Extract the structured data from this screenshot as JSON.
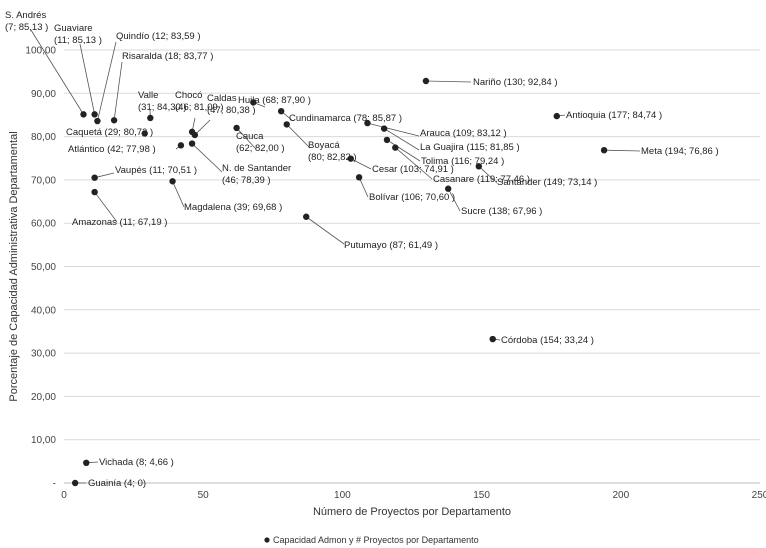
{
  "chart_data": {
    "type": "scatter",
    "xlabel": "Número de Proyectos por Departamento",
    "ylabel": "Porcentaje de Capacidad Administrativa Departamental",
    "xlim": [
      0,
      250
    ],
    "ylim": [
      0,
      100
    ],
    "x_ticks": [
      "0",
      "50",
      "100",
      "150",
      "200",
      "250"
    ],
    "y_ticks": [
      "-",
      "10,00",
      "20,00",
      "30,00",
      "40,00",
      "50,00",
      "60,00",
      "70,00",
      "80,00",
      "90,00",
      "100,00"
    ],
    "grid": "horizontal",
    "legend_position": "bottom",
    "marker_color": "#222222",
    "series": [
      {
        "name": "Capacidad Admon y # Proyectos por Departamento",
        "points": [
          {
            "x": 7,
            "y": 85.13,
            "label": "S. Andrés\n(7; 85,13 )"
          },
          {
            "x": 11,
            "y": 85.13,
            "label": "Guaviare\n(11; 85,13 )"
          },
          {
            "x": 12,
            "y": 83.59,
            "label": "Quindío (12; 83,59 )"
          },
          {
            "x": 18,
            "y": 83.77,
            "label": "Risaralda (18; 83,77 )"
          },
          {
            "x": 29,
            "y": 80.72,
            "label": "Caquetá (29; 80,72 )"
          },
          {
            "x": 31,
            "y": 84.3,
            "label": "Valle\n(31; 84,30 )"
          },
          {
            "x": 42,
            "y": 77.98,
            "label": "Atlántico (42; 77,98 )"
          },
          {
            "x": 46,
            "y": 81.09,
            "label": "Chocó\n(46; 81,09 )"
          },
          {
            "x": 47,
            "y": 80.38,
            "label": "Caldas\n(47; 80,38 )"
          },
          {
            "x": 46,
            "y": 78.39,
            "label": "N. de Santander\n(46; 78,39 )"
          },
          {
            "x": 11,
            "y": 70.51,
            "label": "Vaupés (11; 70,51 )"
          },
          {
            "x": 11,
            "y": 67.19,
            "label": "Amazonas (11; 67,19 )"
          },
          {
            "x": 39,
            "y": 69.68,
            "label": "Magdalena (39; 69,68 )"
          },
          {
            "x": 68,
            "y": 87.9,
            "label": "Huila (68; 87,90 )"
          },
          {
            "x": 62,
            "y": 82.0,
            "label": "Cauca\n(62; 82,00 )"
          },
          {
            "x": 78,
            "y": 85.87,
            "label": "Cundinamarca (78; 85,87 )"
          },
          {
            "x": 80,
            "y": 82.82,
            "label": "Boyacá\n(80; 82,82 )"
          },
          {
            "x": 87,
            "y": 61.49,
            "label": "Putumayo (87; 61,49 )"
          },
          {
            "x": 130,
            "y": 92.84,
            "label": "Nariño (130; 92,84 )"
          },
          {
            "x": 109,
            "y": 83.12,
            "label": "Arauca (109; 83,12 )"
          },
          {
            "x": 115,
            "y": 81.85,
            "label": "La Guajira (115; 81,85 )"
          },
          {
            "x": 116,
            "y": 79.24,
            "label": "Tolima (116; 79,24 )"
          },
          {
            "x": 119,
            "y": 77.46,
            "label": "Casanare (119; 77,46 )"
          },
          {
            "x": 103,
            "y": 74.91,
            "label": "Cesar (103; 74,91 )"
          },
          {
            "x": 106,
            "y": 70.6,
            "label": "Bolívar (106; 70,60 )"
          },
          {
            "x": 138,
            "y": 67.96,
            "label": "Sucre (138; 67,96 )"
          },
          {
            "x": 149,
            "y": 73.14,
            "label": "Santander (149; 73,14 )"
          },
          {
            "x": 177,
            "y": 84.74,
            "label": "Antioquia (177; 84,74 )"
          },
          {
            "x": 194,
            "y": 76.86,
            "label": "Meta (194; 76,86 )"
          },
          {
            "x": 154,
            "y": 33.24,
            "label": "Córdoba (154; 33,24 )"
          },
          {
            "x": 8,
            "y": 4.66,
            "label": "Vichada (8; 4,66 )"
          },
          {
            "x": 4,
            "y": 0,
            "label": "Guainía (4; 0)"
          }
        ]
      }
    ]
  }
}
